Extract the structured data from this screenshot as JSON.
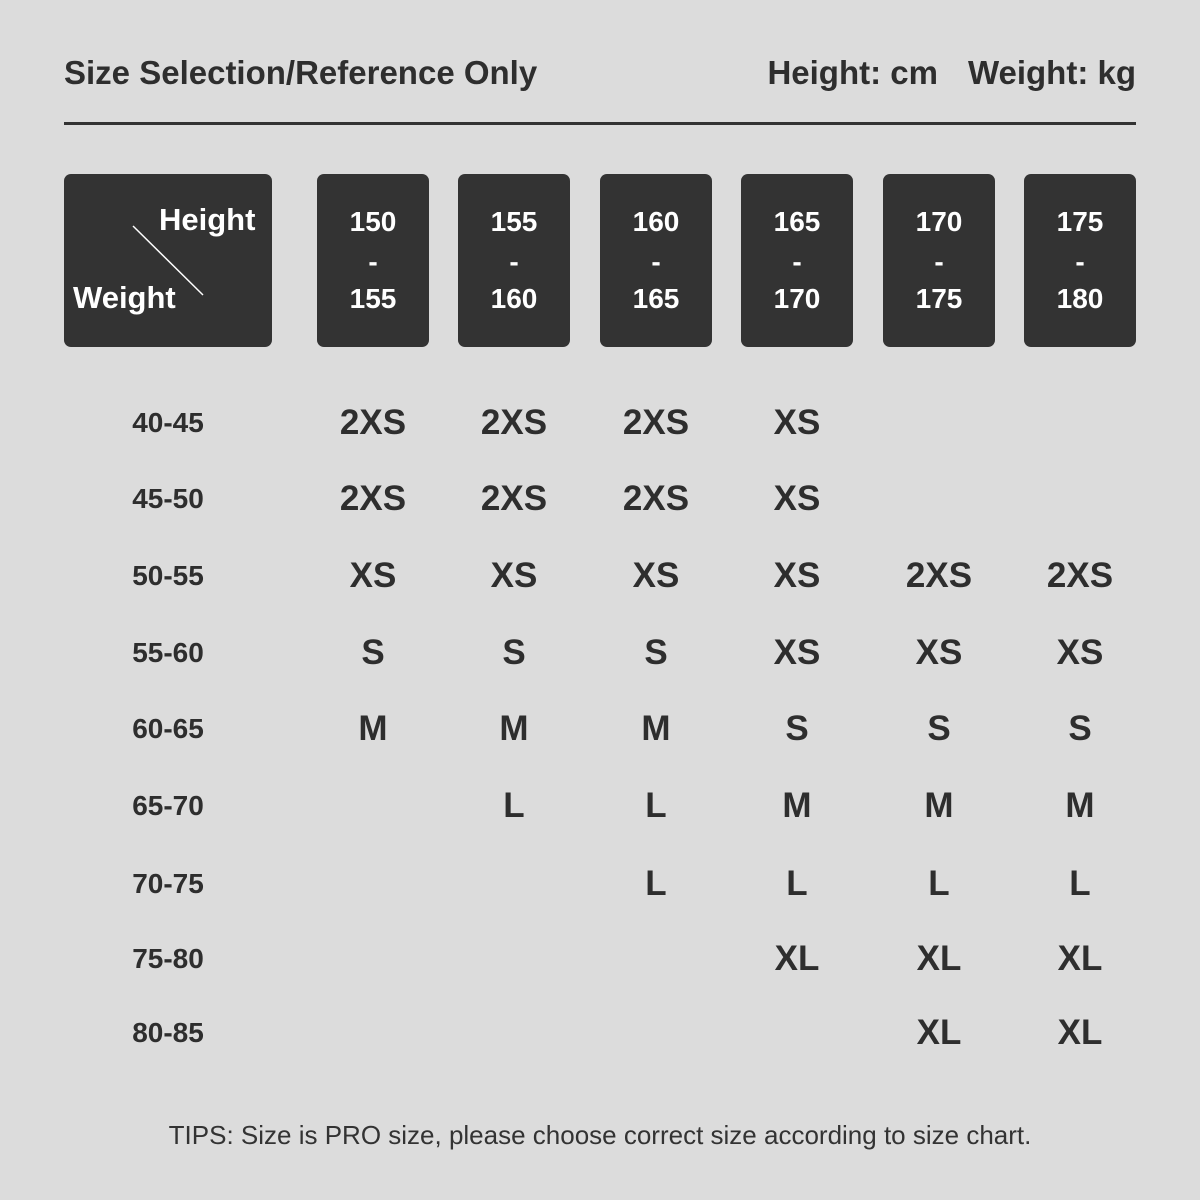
{
  "header": {
    "title": "Size Selection/Reference Only",
    "height_unit": "Height: cm",
    "weight_unit": "Weight: kg"
  },
  "table": {
    "corner": {
      "top": "Height",
      "bottom": "Weight"
    },
    "separator": "-",
    "columns": [
      {
        "from": "150",
        "to": "155"
      },
      {
        "from": "155",
        "to": "160"
      },
      {
        "from": "160",
        "to": "165"
      },
      {
        "from": "165",
        "to": "170"
      },
      {
        "from": "170",
        "to": "175"
      },
      {
        "from": "175",
        "to": "180"
      }
    ],
    "rows": [
      {
        "weight": "40-45",
        "sizes": [
          "2XS",
          "2XS",
          "2XS",
          "XS",
          null,
          null
        ]
      },
      {
        "weight": "45-50",
        "sizes": [
          "2XS",
          "2XS",
          "2XS",
          "XS",
          null,
          null
        ]
      },
      {
        "weight": "50-55",
        "sizes": [
          "XS",
          "XS",
          "XS",
          "XS",
          "2XS",
          "2XS"
        ]
      },
      {
        "weight": "55-60",
        "sizes": [
          "S",
          "S",
          "S",
          "XS",
          "XS",
          "XS"
        ]
      },
      {
        "weight": "60-65",
        "sizes": [
          "M",
          "M",
          "M",
          "S",
          "S",
          "S"
        ]
      },
      {
        "weight": "65-70",
        "sizes": [
          null,
          "L",
          "L",
          "M",
          "M",
          "M"
        ]
      },
      {
        "weight": "70-75",
        "sizes": [
          null,
          null,
          "L",
          "L",
          "L",
          "L"
        ]
      },
      {
        "weight": "75-80",
        "sizes": [
          null,
          null,
          null,
          "XL",
          "XL",
          "XL"
        ]
      },
      {
        "weight": "80-85",
        "sizes": [
          null,
          null,
          null,
          null,
          "XL",
          "XL"
        ]
      }
    ]
  },
  "tips": "TIPS: Size is PRO size, please choose correct size according to size chart."
}
